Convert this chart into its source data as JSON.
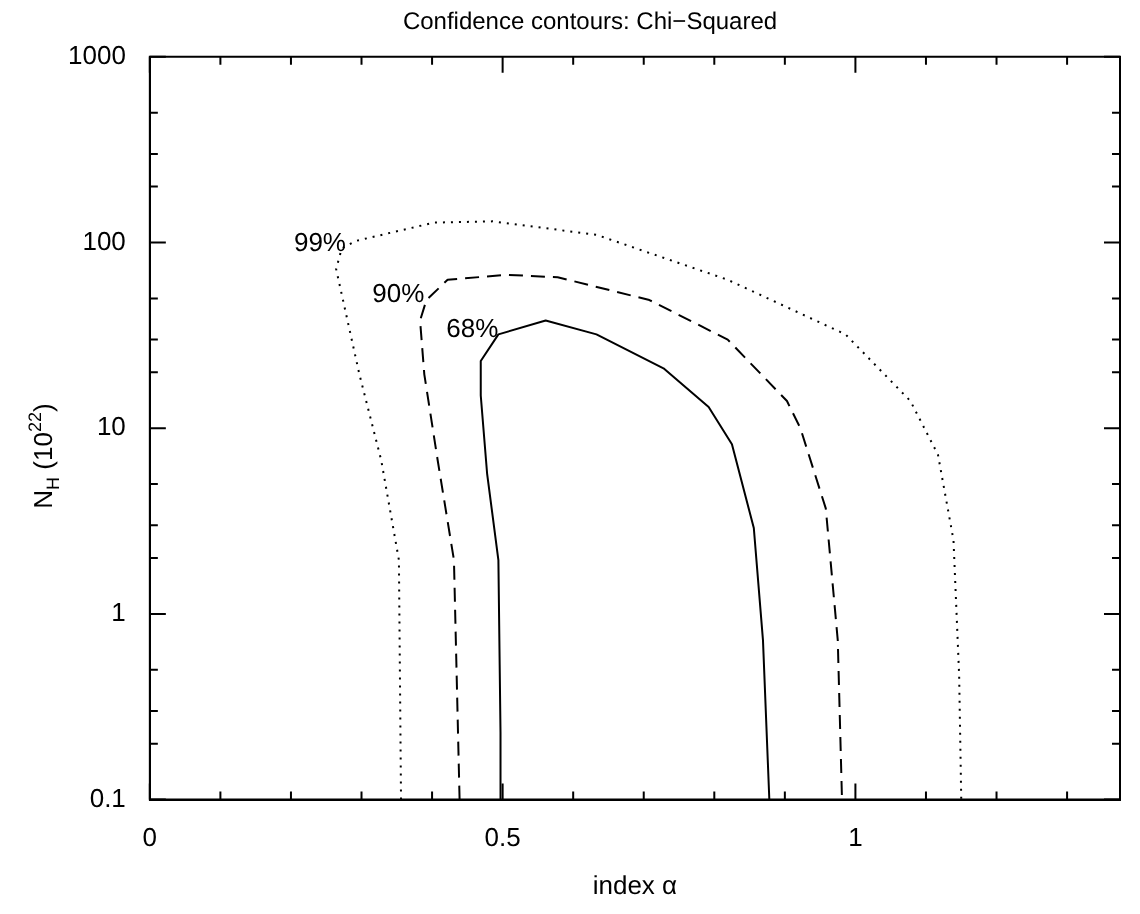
{
  "chart_data": {
    "type": "line",
    "title": "Confidence contours: Chi−Squared",
    "xlabel": "index α",
    "ylabel": "N$_{H}$ (10$^{22}$)",
    "log": "y",
    "xlim": [
      0,
      1.375
    ],
    "xticks": [
      0,
      {
        "value": 0.1,
        "label": null
      },
      {
        "value": 0.2,
        "label": null
      },
      {
        "value": 0.3,
        "label": null
      },
      {
        "value": 0.4,
        "label": null
      },
      0.5,
      {
        "value": 0.6,
        "label": null
      },
      {
        "value": 0.7,
        "label": null
      },
      {
        "value": 0.8,
        "label": null
      },
      {
        "value": 0.9,
        "label": null
      },
      1,
      {
        "value": 1.1,
        "label": null
      },
      {
        "value": 1.2,
        "label": null
      },
      {
        "value": 1.3,
        "label": null
      }
    ],
    "ylim": [
      0.1,
      1000
    ],
    "yticks": [
      0.1,
      {
        "value": 0.2,
        "label": null
      },
      {
        "value": 0.3,
        "label": null
      },
      {
        "value": 0.5,
        "label": null
      },
      1,
      {
        "value": 2,
        "label": null
      },
      {
        "value": 3,
        "label": null
      },
      {
        "value": 5,
        "label": null
      },
      10,
      {
        "value": 20,
        "label": null
      },
      {
        "value": 30,
        "label": null
      },
      {
        "value": 50,
        "label": null
      },
      100,
      {
        "value": 200,
        "label": null
      },
      {
        "value": 300,
        "label": null
      },
      {
        "value": 500,
        "label": null
      },
      1000
    ],
    "series": [
      {
        "color": "#000000",
        "line_style": "solid",
        "x": [
          0.497,
          0.497,
          0.494,
          0.478,
          0.469,
          0.469,
          0.494,
          0.561,
          0.633,
          0.728,
          0.792,
          0.825,
          0.856,
          0.869,
          0.878
        ],
        "values": [
          0.1,
          0.23,
          1.95,
          5.7,
          15,
          23,
          32,
          38,
          32,
          21,
          13,
          8.2,
          2.9,
          0.72,
          0.1
        ]
      },
      {
        "color": "#000000",
        "line_style": "dashed",
        "x": [
          0.439,
          0.431,
          0.408,
          0.389,
          0.383,
          0.392,
          0.422,
          0.506,
          0.578,
          0.708,
          0.819,
          0.903,
          0.922,
          0.958,
          0.975,
          0.981
        ],
        "values": [
          0.1,
          1.95,
          6.7,
          19.5,
          38,
          49,
          63,
          67,
          65,
          49,
          30,
          14,
          10,
          3.7,
          0.72,
          0.1
        ]
      },
      {
        "color": "#000000",
        "line_style": "dotted",
        "x": [
          0.356,
          0.353,
          0.328,
          0.297,
          0.264,
          0.272,
          0.292,
          0.403,
          0.486,
          0.633,
          0.819,
          0.986,
          1.078,
          1.117,
          1.139,
          1.147,
          1.15
        ],
        "values": [
          0.1,
          1.95,
          6.7,
          19.5,
          72,
          93,
          102,
          128,
          130,
          110,
          63,
          32,
          14,
          7.2,
          2.5,
          0.47,
          0.1
        ]
      }
    ],
    "annotations": [
      {
        "text": "99%",
        "x": 0.278,
        "y": 93
      },
      {
        "text": "90%",
        "x": 0.389,
        "y": 49
      },
      {
        "text": "68%",
        "x": 0.494,
        "y": 32
      }
    ]
  }
}
